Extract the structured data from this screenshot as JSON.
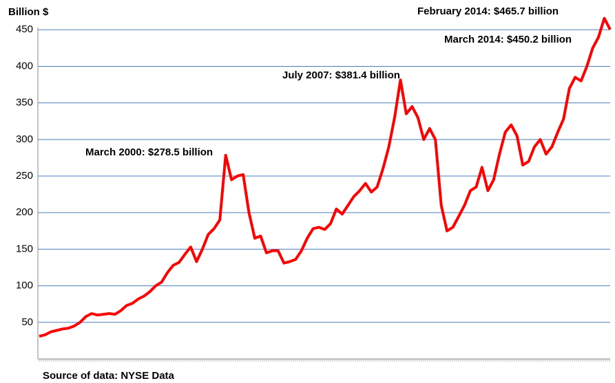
{
  "chart_data": {
    "type": "line",
    "y_axis_label": "Billion $",
    "source": "Source of data: NYSE Data",
    "annotations": [
      "March 2000: $278.5 billion",
      "July 2007: $381.4 billion",
      "February 2014: $465.7 billion",
      "March 2014: $450.2 billion"
    ],
    "color": "#ff0000",
    "grid": true,
    "ylim": [
      0,
      470
    ],
    "yticks": [
      50,
      100,
      150,
      200,
      250,
      300,
      350,
      400,
      450
    ],
    "values": [
      31,
      33,
      37,
      39,
      41,
      42,
      45,
      50,
      58,
      62,
      60,
      61,
      62,
      61,
      66,
      73,
      76,
      82,
      86,
      92,
      100,
      105,
      118,
      128,
      132,
      143,
      153,
      133,
      150,
      170,
      178,
      190,
      278.5,
      245,
      250,
      252,
      200,
      165,
      168,
      145,
      148,
      148,
      131,
      133,
      136,
      148,
      165,
      178,
      180,
      177,
      185,
      205,
      198,
      210,
      222,
      230,
      240,
      228,
      235,
      260,
      290,
      330,
      381.4,
      335,
      345,
      330,
      300,
      315,
      300,
      210,
      175,
      180,
      195,
      210,
      230,
      235,
      262,
      230,
      245,
      280,
      310,
      320,
      305,
      265,
      270,
      290,
      300,
      280,
      290,
      310,
      328,
      370,
      385,
      380,
      400,
      425,
      440,
      465.7,
      450.2
    ]
  }
}
